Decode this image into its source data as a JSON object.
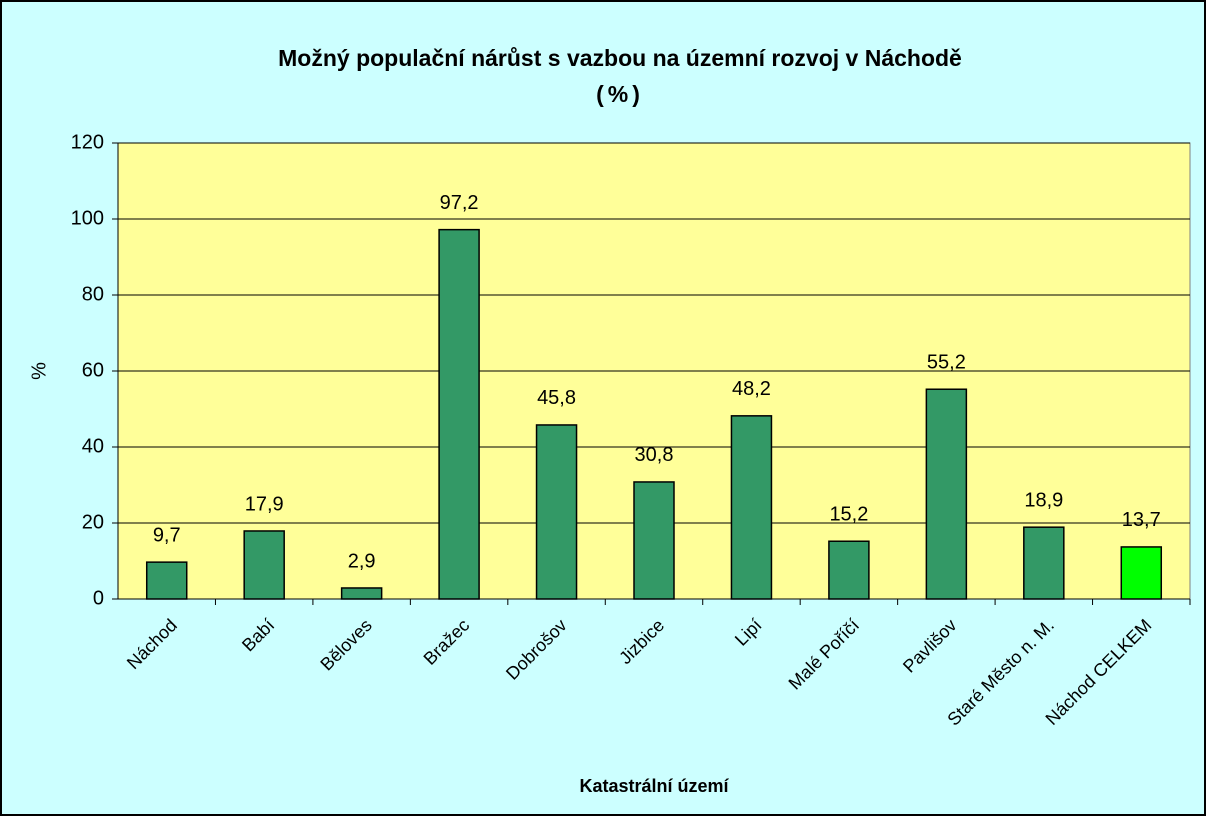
{
  "chart_data": {
    "type": "bar",
    "title": "Možný populační nárůst s vazbou na územní rozvoj v Náchodě",
    "subtitle": "(%)",
    "y_label": "%",
    "x_label": "Katastrální území",
    "categories": [
      "Náchod",
      "Babí",
      "Běloves",
      "Bražec",
      "Dobrošov",
      "Jizbice",
      "Lipí",
      "Malé Poříčí",
      "Pavlišov",
      "Staré Město n. M.",
      "Náchod CELKEM"
    ],
    "values": [
      9.7,
      17.9,
      2.9,
      97.2,
      45.8,
      30.8,
      48.2,
      15.2,
      55.2,
      18.9,
      13.7
    ],
    "value_labels": [
      "9,7",
      "17,9",
      "2,9",
      "97,2",
      "45,8",
      "30,8",
      "48,2",
      "15,2",
      "55,2",
      "18,9",
      "13,7"
    ],
    "colors": [
      "#339966",
      "#339966",
      "#339966",
      "#339966",
      "#339966",
      "#339966",
      "#339966",
      "#339966",
      "#339966",
      "#339966",
      "#00ff00"
    ],
    "ylim": [
      0,
      120
    ],
    "yticks": [
      0,
      20,
      40,
      60,
      80,
      100,
      120
    ],
    "grid": true
  }
}
